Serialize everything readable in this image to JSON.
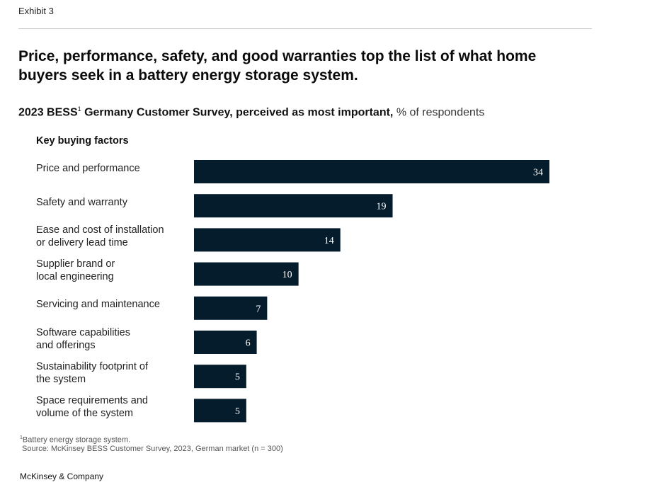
{
  "header": {
    "exhibit": "Exhibit 3",
    "headline": "Price, performance, safety, and good warranties top the list of what home buyers seek in a battery energy storage system.",
    "subtitle_bold_prefix": "2023 BESS",
    "subtitle_sup": "1",
    "subtitle_bold_suffix": " Germany Customer Survey, perceived as most important,",
    "subtitle_unit": " % of respondents"
  },
  "chart_data": {
    "type": "bar",
    "orientation": "horizontal",
    "column_header": "Key buying factors",
    "categories": [
      [
        "Price and performance"
      ],
      [
        "Safety and warranty"
      ],
      [
        "Ease and cost of installation",
        "or delivery lead time"
      ],
      [
        "Supplier brand or",
        "local engineering"
      ],
      [
        "Servicing and maintenance"
      ],
      [
        "Software capabilities",
        "and offerings"
      ],
      [
        "Sustainability footprint of",
        "the system"
      ],
      [
        "Space requirements and",
        "volume of the system"
      ]
    ],
    "values": [
      34,
      19,
      14,
      10,
      7,
      6,
      5,
      5
    ],
    "unit": "% of respondents",
    "bar_color": "#051c2c",
    "label_color": "#ffffff",
    "data_labels": true,
    "grid": false
  },
  "footer": {
    "footnote_sup": "1",
    "footnote": "Battery energy storage system.",
    "source": "Source: McKinsey BESS Customer Survey, 2023, German market (n = 300)",
    "brand": "McKinsey & Company"
  }
}
